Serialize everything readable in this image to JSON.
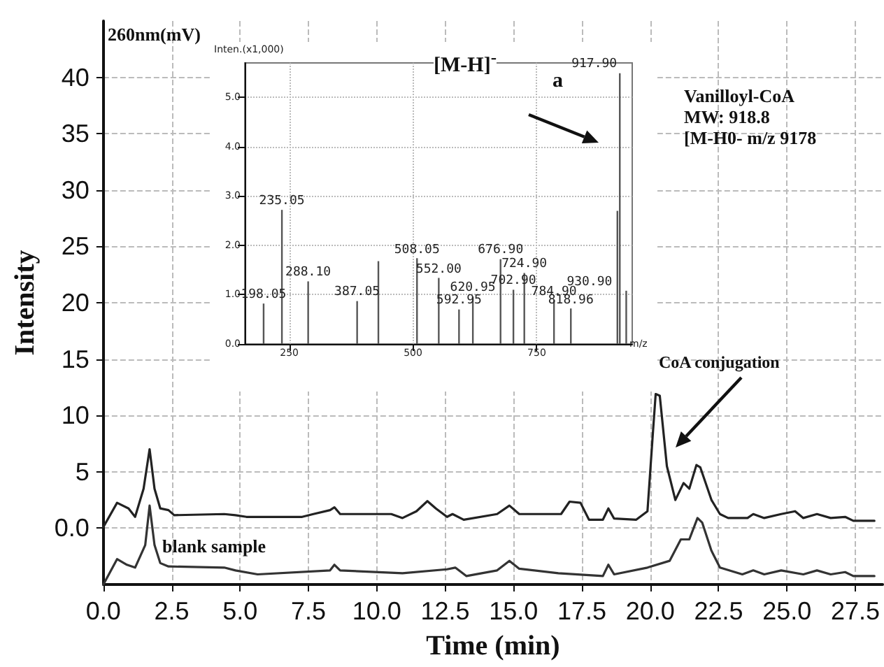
{
  "chart_data": [
    {
      "type": "line",
      "xlabel": "Time (min)",
      "ylabel": "Intensity",
      "xlim": [
        0,
        28.5
      ],
      "ylim": [
        -5,
        45
      ],
      "xticks": [
        {
          "value": 0,
          "label": "0.0"
        },
        2.5,
        {
          "value": 5,
          "label": "5.0"
        },
        7.5,
        {
          "value": 10,
          "label": "10.0"
        },
        12.5,
        {
          "value": 15,
          "label": "15.0"
        },
        17.5,
        {
          "value": 20,
          "label": "20.0"
        },
        22.5,
        {
          "value": 25,
          "label": "25.0"
        },
        27.5
      ],
      "yticks": [
        {
          "value": 0,
          "label": "0.0"
        },
        5,
        10,
        15,
        20,
        25,
        30,
        35,
        40
      ],
      "grid": true,
      "marker": "none",
      "line_style": "solid",
      "annotations": [
        "260nm(mV)",
        "Vanilloyl-CoA\nMW: 918.8\n[M-H0- m/z 9178",
        "CoA conjugation"
      ],
      "series": [
        {
          "color": "#222222",
          "x": [
            0,
            0.5,
            0.92,
            1.16,
            1.47,
            1.69,
            1.87,
            2.08,
            2.38,
            2.59,
            4.42,
            4.83,
            5.23,
            7.27,
            7.68,
            8.29,
            8.45,
            8.66,
            10.53,
            10.94,
            11.45,
            11.85,
            12.16,
            12.57,
            12.77,
            13.18,
            14.4,
            14.85,
            15.21,
            16.74,
            17.05,
            17.45,
            17.76,
            18.27,
            18.47,
            18.68,
            19.49,
            19.9,
            20.1,
            20.2,
            20.35,
            20.61,
            20.92,
            21.22,
            21.43,
            21.69,
            21.83,
            22.24,
            22.55,
            22.85,
            23.56,
            23.77,
            24.17,
            24.79,
            25.3,
            25.6,
            26.1,
            26.6,
            27.13,
            27.43,
            28.2
          ],
          "values": [
            0.1,
            2.25,
            1.75,
            1.0,
            3.5,
            7.0,
            3.5,
            1.75,
            1.6,
            1.15,
            1.25,
            1.15,
            1.0,
            1.0,
            1.25,
            1.6,
            1.85,
            1.25,
            1.25,
            0.9,
            1.5,
            2.4,
            1.75,
            1.0,
            1.25,
            0.75,
            1.25,
            2.0,
            1.25,
            1.25,
            2.35,
            2.25,
            0.75,
            0.75,
            1.75,
            0.85,
            0.75,
            1.5,
            8.5,
            11.9,
            11.75,
            5.5,
            2.5,
            4.0,
            3.5,
            5.6,
            5.4,
            2.5,
            1.25,
            0.9,
            0.9,
            1.25,
            0.9,
            1.25,
            1.5,
            0.9,
            1.25,
            0.9,
            1.0,
            0.65,
            0.65
          ]
        },
        {
          "name": "blank sample",
          "color": "#333333",
          "x": [
            0,
            0.5,
            0.86,
            1.16,
            1.53,
            1.69,
            1.87,
            2.08,
            2.38,
            4.42,
            4.83,
            5.64,
            8.29,
            8.45,
            8.66,
            10.94,
            12.57,
            12.87,
            13.28,
            14.4,
            14.85,
            15.21,
            16.64,
            18.27,
            18.47,
            18.68,
            19.9,
            20.71,
            21.12,
            21.43,
            21.73,
            21.9,
            22.24,
            22.55,
            23.37,
            23.77,
            24.17,
            24.79,
            25.6,
            26.1,
            26.6,
            27.13,
            27.43,
            28.2
          ],
          "values": [
            -5,
            -2.75,
            -3.25,
            -3.5,
            -1.5,
            2.0,
            -1.5,
            -3.1,
            -3.4,
            -3.5,
            -3.75,
            -4.1,
            -3.75,
            -3.25,
            -3.75,
            -4.0,
            -3.65,
            -3.5,
            -4.25,
            -3.75,
            -2.9,
            -3.6,
            -4.0,
            -4.25,
            -3.25,
            -4.1,
            -3.5,
            -2.9,
            -1.0,
            -1.0,
            0.9,
            0.5,
            -2.0,
            -3.5,
            -4.1,
            -3.75,
            -4.1,
            -3.75,
            -4.1,
            -3.75,
            -4.1,
            -3.9,
            -4.25,
            -4.25
          ]
        }
      ]
    },
    {
      "type": "bar",
      "xlabel": "m/z",
      "ylabel": "Inten.(x1,000)",
      "xlim": [
        160,
        943
      ],
      "ylim": [
        0,
        5.7
      ],
      "xticks": [
        250,
        500,
        750
      ],
      "yticks": [
        {
          "value": 0,
          "label": "0.0"
        },
        {
          "value": 1,
          "label": "1.0"
        },
        {
          "value": 2,
          "label": "2.0"
        },
        {
          "value": 3,
          "label": "3.0"
        },
        {
          "value": 4,
          "label": "4.0"
        },
        {
          "value": 5,
          "label": "5.0"
        }
      ],
      "grid": true,
      "color": "#555555",
      "x": [
        198.05,
        235.05,
        288.1,
        387.05,
        430,
        508.05,
        552.0,
        592.95,
        620.95,
        676.9,
        702.9,
        724.9,
        784.9,
        818.96,
        913,
        917.9,
        930.9
      ],
      "values": [
        0.82,
        2.72,
        1.27,
        0.87,
        1.68,
        1.74,
        1.34,
        0.7,
        0.96,
        1.72,
        1.1,
        1.44,
        0.89,
        0.72,
        2.7,
        5.49,
        1.08
      ],
      "annotations": [
        "[M-H]$^{-}$",
        "a",
        {
          "text": "198.05",
          "x": 198.05,
          "y": 0.82
        },
        {
          "text": "235.05",
          "x": 235.05,
          "y": 2.72
        },
        {
          "text": "288.10",
          "x": 288.1,
          "y": 1.27
        },
        {
          "text": "387.05",
          "x": 387.05,
          "y": 0.87
        },
        {
          "text": "508.05",
          "x": 508.05,
          "y": 1.74
        },
        {
          "text": "552.00",
          "x": 552.0,
          "y": 1.34
        },
        {
          "text": "592.95",
          "x": 592.95,
          "y": 0.7
        },
        {
          "text": "620.95",
          "x": 620.95,
          "y": 0.96
        },
        {
          "text": "676.90",
          "x": 676.9,
          "y": 1.72
        },
        {
          "text": "702.90",
          "x": 702.9,
          "y": 1.1
        },
        {
          "text": "724.90",
          "x": 724.9,
          "y": 1.44
        },
        {
          "text": "784.90",
          "x": 784.9,
          "y": 0.89
        },
        {
          "text": "818.96",
          "x": 818.96,
          "y": 0.72
        },
        {
          "text": "917.90",
          "x": 917.9,
          "y": 5.49
        },
        {
          "text": "930.90",
          "x": 930.9,
          "y": 1.08
        }
      ]
    }
  ]
}
